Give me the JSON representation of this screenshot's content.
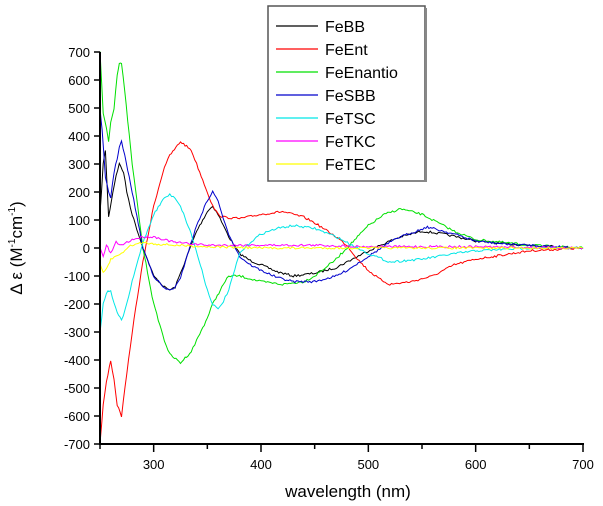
{
  "chart_data": {
    "type": "line",
    "title": "",
    "xlabel": "wavelength (nm)",
    "ylabel": "Δ ε (M⁻¹cm⁻¹)",
    "ylabel_parts": {
      "main": "Δ ε (M",
      "sup1": "-1",
      "mid": "cm",
      "sup2": "-1",
      "end": ")"
    },
    "xlim": [
      250,
      700
    ],
    "ylim": [
      -700,
      700
    ],
    "x_ticks": [
      300,
      400,
      500,
      600,
      700
    ],
    "x_minor_ticks": [
      250,
      350,
      450,
      550,
      650
    ],
    "y_ticks": [
      -700,
      -600,
      -500,
      -400,
      -300,
      -200,
      -100,
      0,
      100,
      200,
      300,
      400,
      500,
      600,
      700
    ],
    "grid": false,
    "legend_position": "top-center",
    "series": [
      {
        "name": "FeBB",
        "color": "#000000",
        "x": [
          250,
          253,
          255,
          258,
          262,
          265,
          268,
          272,
          275,
          280,
          290,
          300,
          310,
          315,
          320,
          325,
          330,
          340,
          350,
          355,
          360,
          365,
          370,
          380,
          390,
          400,
          415,
          430,
          450,
          470,
          480,
          500,
          520,
          530,
          550,
          570,
          600,
          625,
          650,
          675,
          700
        ],
        "y": [
          120,
          300,
          350,
          110,
          200,
          260,
          300,
          270,
          200,
          120,
          0,
          -100,
          -140,
          -150,
          -140,
          -90,
          -40,
          60,
          130,
          150,
          120,
          80,
          40,
          -20,
          -45,
          -60,
          -85,
          -100,
          -90,
          -70,
          -50,
          -10,
          25,
          40,
          60,
          50,
          25,
          15,
          10,
          5,
          0
        ]
      },
      {
        "name": "FeEnt",
        "color": "#ff0000",
        "x": [
          250,
          253,
          256,
          260,
          263,
          266,
          270,
          275,
          280,
          285,
          290,
          300,
          310,
          315,
          325,
          335,
          340,
          350,
          355,
          360,
          365,
          380,
          400,
          420,
          440,
          450,
          470,
          480,
          490,
          500,
          510,
          520,
          540,
          560,
          580,
          600,
          625,
          650,
          675,
          700
        ],
        "y": [
          -700,
          -560,
          -480,
          -400,
          -470,
          -560,
          -600,
          -450,
          -300,
          -170,
          -50,
          150,
          290,
          330,
          380,
          350,
          300,
          200,
          150,
          120,
          110,
          105,
          120,
          130,
          110,
          90,
          40,
          10,
          -40,
          -80,
          -110,
          -130,
          -120,
          -100,
          -60,
          -40,
          -25,
          -10,
          -5,
          0
        ]
      },
      {
        "name": "FeEnantio",
        "color": "#00e000",
        "x": [
          250,
          253,
          256,
          258,
          260,
          263,
          266,
          268,
          270,
          273,
          280,
          285,
          290,
          300,
          310,
          315,
          325,
          335,
          340,
          350,
          355,
          365,
          370,
          380,
          400,
          420,
          440,
          450,
          470,
          480,
          490,
          500,
          515,
          530,
          550,
          570,
          580,
          600,
          625,
          650,
          675,
          700
        ],
        "y": [
          700,
          480,
          430,
          380,
          450,
          500,
          620,
          660,
          660,
          560,
          300,
          150,
          0,
          -200,
          -330,
          -380,
          -410,
          -370,
          -330,
          -250,
          -200,
          -130,
          -100,
          -100,
          -120,
          -130,
          -120,
          -100,
          -40,
          0,
          40,
          80,
          120,
          140,
          120,
          80,
          60,
          30,
          20,
          10,
          5,
          0
        ]
      },
      {
        "name": "FeSBB",
        "color": "#0000cc",
        "x": [
          250,
          252,
          255,
          258,
          260,
          263,
          266,
          268,
          270,
          273,
          280,
          290,
          300,
          310,
          315,
          320,
          325,
          330,
          340,
          350,
          355,
          360,
          365,
          370,
          380,
          390,
          400,
          415,
          430,
          450,
          470,
          480,
          500,
          520,
          530,
          555,
          580,
          600,
          625,
          650,
          675,
          700
        ],
        "y": [
          500,
          420,
          250,
          200,
          180,
          270,
          320,
          360,
          380,
          330,
          200,
          0,
          -100,
          -145,
          -150,
          -140,
          -110,
          -40,
          80,
          170,
          200,
          170,
          100,
          50,
          -30,
          -60,
          -80,
          -105,
          -120,
          -120,
          -100,
          -80,
          -30,
          20,
          40,
          75,
          50,
          25,
          15,
          10,
          5,
          0
        ]
      },
      {
        "name": "FeTSC",
        "color": "#00e6e6",
        "x": [
          250,
          253,
          256,
          260,
          263,
          266,
          270,
          275,
          280,
          290,
          300,
          310,
          315,
          320,
          325,
          335,
          345,
          350,
          355,
          360,
          365,
          370,
          380,
          390,
          400,
          415,
          430,
          450,
          470,
          485,
          500,
          520,
          550,
          580,
          600,
          625,
          650,
          675,
          700
        ],
        "y": [
          -300,
          -200,
          -160,
          -150,
          -200,
          -230,
          -260,
          -200,
          -120,
          20,
          120,
          180,
          190,
          180,
          150,
          50,
          -80,
          -150,
          -200,
          -220,
          -190,
          -150,
          -20,
          20,
          50,
          70,
          80,
          70,
          40,
          10,
          -20,
          -50,
          -40,
          -20,
          -10,
          -5,
          0,
          0,
          0
        ]
      },
      {
        "name": "FeTKC",
        "color": "#ff00ff",
        "x": [
          250,
          253,
          256,
          260,
          265,
          270,
          275,
          280,
          290,
          300,
          310,
          320,
          335,
          350,
          375,
          400,
          450,
          500,
          550,
          600,
          650,
          700
        ],
        "y": [
          0,
          -30,
          10,
          -20,
          20,
          10,
          20,
          30,
          40,
          40,
          30,
          20,
          15,
          10,
          10,
          10,
          10,
          5,
          5,
          5,
          2,
          0
        ]
      },
      {
        "name": "FeTEC",
        "color": "#ffff00",
        "x": [
          250,
          253,
          255,
          258,
          260,
          265,
          270,
          275,
          280,
          290,
          300,
          320,
          350,
          400,
          450,
          500,
          550,
          600,
          650,
          700
        ],
        "y": [
          -60,
          -90,
          -80,
          -60,
          -40,
          -30,
          -20,
          0,
          10,
          20,
          15,
          10,
          5,
          0,
          0,
          0,
          0,
          0,
          0,
          0
        ]
      }
    ]
  },
  "legend": {
    "items": [
      {
        "label": "FeBB",
        "color": "#000000"
      },
      {
        "label": "FeEnt",
        "color": "#ff0000"
      },
      {
        "label": "FeEnantio",
        "color": "#00e000"
      },
      {
        "label": "FeSBB",
        "color": "#0000cc"
      },
      {
        "label": "FeTSC",
        "color": "#00e6e6"
      },
      {
        "label": "FeTKC",
        "color": "#ff00ff"
      },
      {
        "label": "FeTEC",
        "color": "#ffff00"
      }
    ]
  },
  "axes": {
    "x_title": "wavelength (nm)",
    "y_title_main": "Δ ε (M",
    "y_title_sup1": "-1",
    "y_title_mid": "cm",
    "y_title_sup2": "-1",
    "y_title_end": ")"
  }
}
